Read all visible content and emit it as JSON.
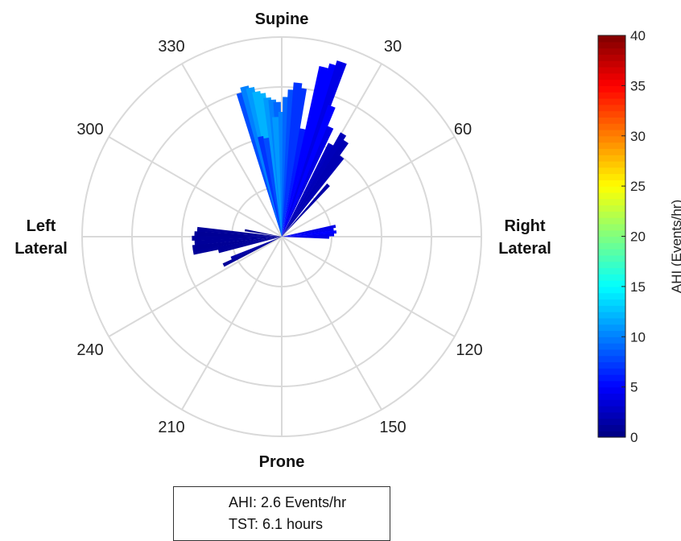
{
  "chart_data": {
    "type": "polar-bar",
    "theta_tick_labels": [
      "30",
      "60",
      "120",
      "150",
      "210",
      "240",
      "300",
      "330"
    ],
    "position_labels": {
      "top": "Supine",
      "right": [
        "Right",
        "Lateral"
      ],
      "bottom": "Prone",
      "left": [
        "Left",
        "Lateral"
      ]
    },
    "radial_rings": 4,
    "colorbar": {
      "label": "AHI (Events/hr)",
      "min": 0,
      "max": 40,
      "ticks": [
        "0",
        "5",
        "10",
        "15",
        "20",
        "25",
        "30",
        "35",
        "40"
      ],
      "colormap": "jet"
    },
    "bars": [
      {
        "angle": -16,
        "r": 3.0,
        "ahi": 8
      },
      {
        "angle": -14,
        "r": 3.1,
        "ahi": 10
      },
      {
        "angle": -12,
        "r": 3.05,
        "ahi": 11
      },
      {
        "angle": -10,
        "r": 2.95,
        "ahi": 12
      },
      {
        "angle": -8,
        "r": 2.9,
        "ahi": 12
      },
      {
        "angle": -6,
        "r": 2.8,
        "ahi": 11
      },
      {
        "angle": -4,
        "r": 2.75,
        "ahi": 10
      },
      {
        "angle": -2,
        "r": 2.7,
        "ahi": 9
      },
      {
        "angle": -12,
        "r": 2.05,
        "ahi": 7
      },
      {
        "angle": -9,
        "r": 2.0,
        "ahi": 8
      },
      {
        "angle": -3,
        "r": 2.4,
        "ahi": 11
      },
      {
        "angle": 0,
        "r": 2.5,
        "ahi": 10
      },
      {
        "angle": 2,
        "r": 2.8,
        "ahi": 9
      },
      {
        "angle": 4,
        "r": 2.95,
        "ahi": 8
      },
      {
        "angle": 6,
        "r": 3.1,
        "ahi": 7
      },
      {
        "angle": 8,
        "r": 3.0,
        "ahi": 7
      },
      {
        "angle": 11,
        "r": 2.2,
        "ahi": 6
      },
      {
        "angle": 14,
        "r": 3.5,
        "ahi": 5
      },
      {
        "angle": 17,
        "r": 3.6,
        "ahi": 5
      },
      {
        "angle": 19,
        "r": 3.7,
        "ahi": 4
      },
      {
        "angle": 21,
        "r": 2.8,
        "ahi": 5
      },
      {
        "angle": 24,
        "r": 2.4,
        "ahi": 4
      },
      {
        "angle": 28,
        "r": 2.1,
        "ahi": 2.5
      },
      {
        "angle": 31,
        "r": 2.4,
        "ahi": 2.2
      },
      {
        "angle": 34,
        "r": 2.3,
        "ahi": 2
      },
      {
        "angle": 37,
        "r": 2.0,
        "ahi": 2
      },
      {
        "angle": 42,
        "r": 1.4,
        "ahi": 1.5
      },
      {
        "angle": 79,
        "r": 1.1,
        "ahi": 4
      },
      {
        "angle": 82,
        "r": 1.05,
        "ahi": 4.5
      },
      {
        "angle": 85,
        "r": 1.1,
        "ahi": 5
      },
      {
        "angle": 88,
        "r": 1.05,
        "ahi": 4.5
      },
      {
        "angle": 91,
        "r": 0.95,
        "ahi": 4
      },
      {
        "angle": 244,
        "r": 1.3,
        "ahi": 1
      },
      {
        "angle": 247,
        "r": 1.1,
        "ahi": 1.5
      },
      {
        "angle": 257,
        "r": 1.3,
        "ahi": 1
      },
      {
        "angle": 260,
        "r": 1.8,
        "ahi": 1
      },
      {
        "angle": 263,
        "r": 1.8,
        "ahi": 0.9
      },
      {
        "angle": 266,
        "r": 1.75,
        "ahi": 1
      },
      {
        "angle": 269,
        "r": 1.8,
        "ahi": 1
      },
      {
        "angle": 272,
        "r": 1.75,
        "ahi": 0.9
      },
      {
        "angle": 275,
        "r": 1.7,
        "ahi": 1
      },
      {
        "angle": 280,
        "r": 0.75,
        "ahi": 0.5
      }
    ]
  },
  "stats": {
    "ahi_line": "AHI: 2.6 Events/hr",
    "tst_line": "TST: 6.1 hours"
  }
}
